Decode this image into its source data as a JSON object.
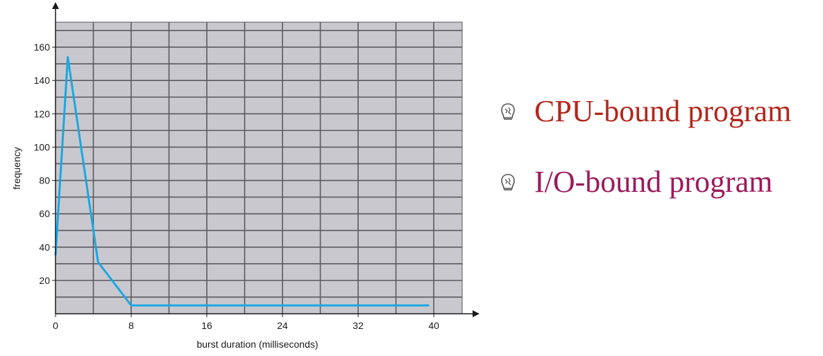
{
  "chart_data": {
    "type": "line",
    "xlabel": "burst duration (milliseconds)",
    "ylabel": "frequency",
    "xlim": [
      0,
      43
    ],
    "ylim": [
      0,
      175
    ],
    "x_ticks": [
      "0",
      "8",
      "16",
      "24",
      "32",
      "40"
    ],
    "y_ticks": [
      "20",
      "40",
      "60",
      "80",
      "100",
      "120",
      "140",
      "160"
    ],
    "grid": true,
    "background_color": "#c9c8cf",
    "line_color": "#1ba7e0",
    "series": [
      {
        "x": [
          0,
          1.3,
          4.5,
          8,
          39.5
        ],
        "y": [
          35,
          154,
          31,
          5,
          5
        ]
      }
    ]
  },
  "legend": {
    "items": [
      {
        "label": "CPU-bound program",
        "color": "#b3261b",
        "icon": "bullet-icon"
      },
      {
        "label": "I/O-bound program",
        "color": "#9b1b5a",
        "icon": "bullet-icon"
      }
    ]
  }
}
